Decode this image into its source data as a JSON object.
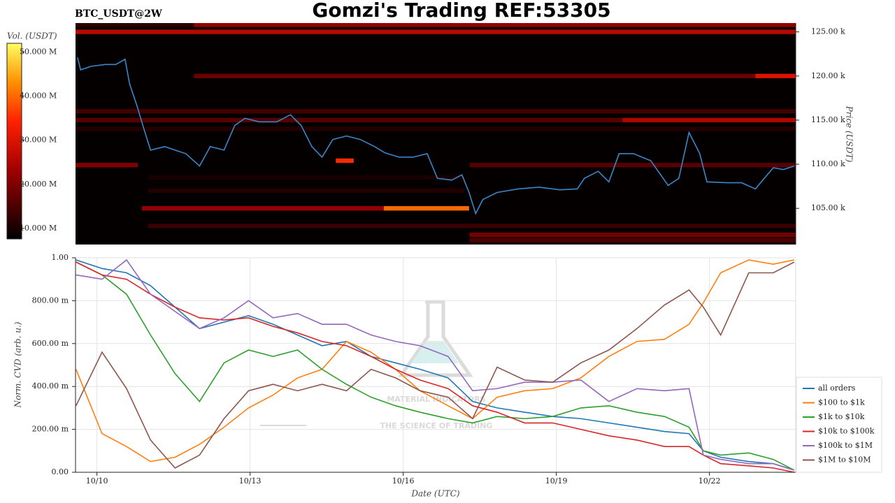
{
  "chart_data": [
    {
      "type": "heatmap",
      "title": "Gomzi's Trading REF:53305",
      "subtitle": "BTC_USDT@2W",
      "y_label": "Price (USDT)",
      "colorbar_label": "Vol. (USDT)",
      "xlim": [
        9.58,
        23.69
      ],
      "ylim": [
        100900,
        126000
      ],
      "yticks": [
        {
          "value": 105000,
          "label": "105.00 k"
        },
        {
          "value": 110000,
          "label": "110.00 k"
        },
        {
          "value": 115000,
          "label": "115.00 k"
        },
        {
          "value": 120000,
          "label": "120.00 k"
        },
        {
          "value": 125000,
          "label": "125.00 k"
        }
      ],
      "clim": [
        7600000,
        52000000
      ],
      "cticks": [
        {
          "value": 10000000,
          "label": "10.000 M"
        },
        {
          "value": 20000000,
          "label": "20.000 M"
        },
        {
          "value": 30000000,
          "label": "30.000 M"
        },
        {
          "value": 40000000,
          "label": "40.000 M"
        },
        {
          "value": 50000000,
          "label": "50.000 M"
        }
      ],
      "levels": [
        {
          "price": 125800,
          "x": [
            9.58,
            11.9
          ],
          "volume": 12000000
        },
        {
          "price": 125800,
          "x": [
            11.9,
            23.69
          ],
          "volume": 22000000
        },
        {
          "price": 125000,
          "x": [
            9.58,
            23.69
          ],
          "volume": 26000000
        },
        {
          "price": 120000,
          "x": [
            11.9,
            22.9
          ],
          "volume": 18000000
        },
        {
          "price": 120000,
          "x": [
            22.9,
            23.69
          ],
          "volume": 30000000
        },
        {
          "price": 116000,
          "x": [
            9.58,
            23.69
          ],
          "volume": 14000000
        },
        {
          "price": 115000,
          "x": [
            9.58,
            20.3
          ],
          "volume": 16000000
        },
        {
          "price": 115000,
          "x": [
            20.3,
            23.69
          ],
          "volume": 25000000
        },
        {
          "price": 114000,
          "x": [
            9.58,
            23.69
          ],
          "volume": 11000000
        },
        {
          "price": 109900,
          "x": [
            9.58,
            10.8
          ],
          "volume": 20000000
        },
        {
          "price": 109900,
          "x": [
            17.3,
            23.69
          ],
          "volume": 16000000
        },
        {
          "price": 110400,
          "x": [
            14.68,
            15.03
          ],
          "volume": 35000000
        },
        {
          "price": 108500,
          "x": [
            11.0,
            17.2
          ],
          "volume": 10000000
        },
        {
          "price": 107000,
          "x": [
            11.0,
            17.2
          ],
          "volume": 11000000
        },
        {
          "price": 105000,
          "x": [
            10.88,
            15.62
          ],
          "volume": 22000000
        },
        {
          "price": 105000,
          "x": [
            15.62,
            17.29
          ],
          "volume": 40000000
        },
        {
          "price": 103000,
          "x": [
            11.0,
            23.69
          ],
          "volume": 13000000
        },
        {
          "price": 102000,
          "x": [
            17.3,
            23.69
          ],
          "volume": 19000000
        },
        {
          "price": 101400,
          "x": [
            17.3,
            23.69
          ],
          "volume": 15000000
        }
      ],
      "price": {
        "color": "#3a86c8",
        "x": [
          9.62,
          9.68,
          9.89,
          10.16,
          10.37,
          10.55,
          10.64,
          10.78,
          10.92,
          11.05,
          11.33,
          11.53,
          11.74,
          12.01,
          12.22,
          12.49,
          12.7,
          12.9,
          13.18,
          13.52,
          13.79,
          14.0,
          14.21,
          14.41,
          14.62,
          14.89,
          15.16,
          15.44,
          15.64,
          15.92,
          16.19,
          16.47,
          16.67,
          16.95,
          17.15,
          17.29,
          17.42,
          17.56,
          17.84,
          18.25,
          18.66,
          19.07,
          19.41,
          19.55,
          19.82,
          20.03,
          20.23,
          20.51,
          20.85,
          21.19,
          21.4,
          21.6,
          21.81,
          21.95,
          22.36,
          22.63,
          22.9,
          23.25,
          23.45,
          23.66
        ],
        "values": [
          122100,
          120700,
          121100,
          121300,
          121300,
          121900,
          119100,
          116700,
          114000,
          111600,
          112000,
          111600,
          111200,
          109800,
          112000,
          111600,
          114400,
          115200,
          114800,
          114800,
          115600,
          114400,
          112000,
          110800,
          112800,
          113200,
          112800,
          112000,
          111300,
          110800,
          110800,
          111200,
          108400,
          108200,
          108800,
          106800,
          104400,
          106000,
          106800,
          107200,
          107400,
          107100,
          107200,
          108400,
          109200,
          108000,
          111200,
          111200,
          110400,
          107600,
          108400,
          113600,
          111200,
          108000,
          107900,
          107900,
          107200,
          109600,
          109400,
          109800
        ]
      }
    },
    {
      "type": "line",
      "y_label": "Norm. CVD (arb. u.)",
      "x_label": "Date (UTC)",
      "xlim": [
        9.58,
        23.69
      ],
      "xticks": [
        {
          "value": 10,
          "label": "10/10"
        },
        {
          "value": 13,
          "label": "10/13"
        },
        {
          "value": 16,
          "label": "10/16"
        },
        {
          "value": 19,
          "label": "10/19"
        },
        {
          "value": 22,
          "label": "10/22"
        }
      ],
      "ylim": [
        0,
        1
      ],
      "yticks": [
        {
          "value": 0,
          "label": "0.00"
        },
        {
          "value": 0.2,
          "label": "200.00 m"
        },
        {
          "value": 0.4,
          "label": "400.00 m"
        },
        {
          "value": 0.6,
          "label": "600.00 m"
        },
        {
          "value": 0.8,
          "label": "800.00 m"
        },
        {
          "value": 1,
          "label": "1.00"
        }
      ],
      "grid": true,
      "legend": "lower right",
      "watermark": [
        "MATERIAL INDICATORS",
        "THE SCIENCE OF TRADING"
      ],
      "x": [
        9.59,
        10.1,
        10.58,
        11.05,
        11.53,
        12.01,
        12.49,
        12.97,
        13.45,
        13.93,
        14.41,
        14.89,
        15.37,
        15.85,
        16.33,
        16.88,
        17.36,
        17.84,
        18.38,
        18.93,
        19.48,
        20.03,
        20.58,
        21.12,
        21.6,
        21.88,
        22.22,
        22.77,
        23.25,
        23.66
      ],
      "series": [
        {
          "name": "all orders",
          "color": "#1f77b4",
          "values": [
            0.99,
            0.95,
            0.93,
            0.87,
            0.77,
            0.67,
            0.7,
            0.73,
            0.69,
            0.64,
            0.59,
            0.61,
            0.54,
            0.51,
            0.48,
            0.44,
            0.33,
            0.3,
            0.28,
            0.26,
            0.25,
            0.23,
            0.21,
            0.19,
            0.18,
            0.1,
            0.07,
            0.05,
            0.04,
            0.01
          ]
        },
        {
          "name": "$100 to $1k",
          "color": "#ff7f0e",
          "values": [
            0.48,
            0.18,
            0.12,
            0.05,
            0.07,
            0.13,
            0.21,
            0.3,
            0.36,
            0.44,
            0.48,
            0.61,
            0.56,
            0.48,
            0.38,
            0.31,
            0.25,
            0.35,
            0.38,
            0.39,
            0.44,
            0.54,
            0.61,
            0.62,
            0.69,
            0.79,
            0.93,
            0.99,
            0.97,
            0.99
          ]
        },
        {
          "name": "$1k to $10k",
          "color": "#2ca02c",
          "values": [
            0.98,
            0.92,
            0.83,
            0.64,
            0.46,
            0.33,
            0.51,
            0.57,
            0.54,
            0.57,
            0.48,
            0.41,
            0.35,
            0.31,
            0.28,
            0.25,
            0.23,
            0.26,
            0.25,
            0.26,
            0.3,
            0.31,
            0.28,
            0.26,
            0.21,
            0.1,
            0.08,
            0.09,
            0.06,
            0.01
          ]
        },
        {
          "name": "$10k to $100k",
          "color": "#d62728",
          "values": [
            0.98,
            0.92,
            0.9,
            0.83,
            0.77,
            0.72,
            0.71,
            0.72,
            0.68,
            0.65,
            0.61,
            0.59,
            0.54,
            0.48,
            0.43,
            0.39,
            0.31,
            0.28,
            0.23,
            0.23,
            0.2,
            0.17,
            0.15,
            0.12,
            0.12,
            0.08,
            0.04,
            0.03,
            0.02,
            0.0
          ]
        },
        {
          "name": "$100k to $1M",
          "color": "#9467bd",
          "values": [
            0.92,
            0.9,
            0.99,
            0.83,
            0.75,
            0.67,
            0.72,
            0.8,
            0.72,
            0.74,
            0.69,
            0.69,
            0.64,
            0.61,
            0.59,
            0.54,
            0.38,
            0.39,
            0.42,
            0.42,
            0.43,
            0.33,
            0.39,
            0.38,
            0.39,
            0.08,
            0.06,
            0.04,
            0.04,
            0.01
          ]
        },
        {
          "name": "$1M to $10M",
          "color": "#8c564b",
          "values": [
            0.31,
            0.56,
            0.39,
            0.15,
            0.02,
            0.08,
            0.25,
            0.38,
            0.41,
            0.38,
            0.41,
            0.38,
            0.48,
            0.44,
            0.38,
            0.35,
            0.25,
            0.49,
            0.43,
            0.42,
            0.51,
            0.57,
            0.67,
            0.78,
            0.85,
            0.77,
            0.64,
            0.93,
            0.93,
            0.98
          ]
        }
      ]
    }
  ]
}
